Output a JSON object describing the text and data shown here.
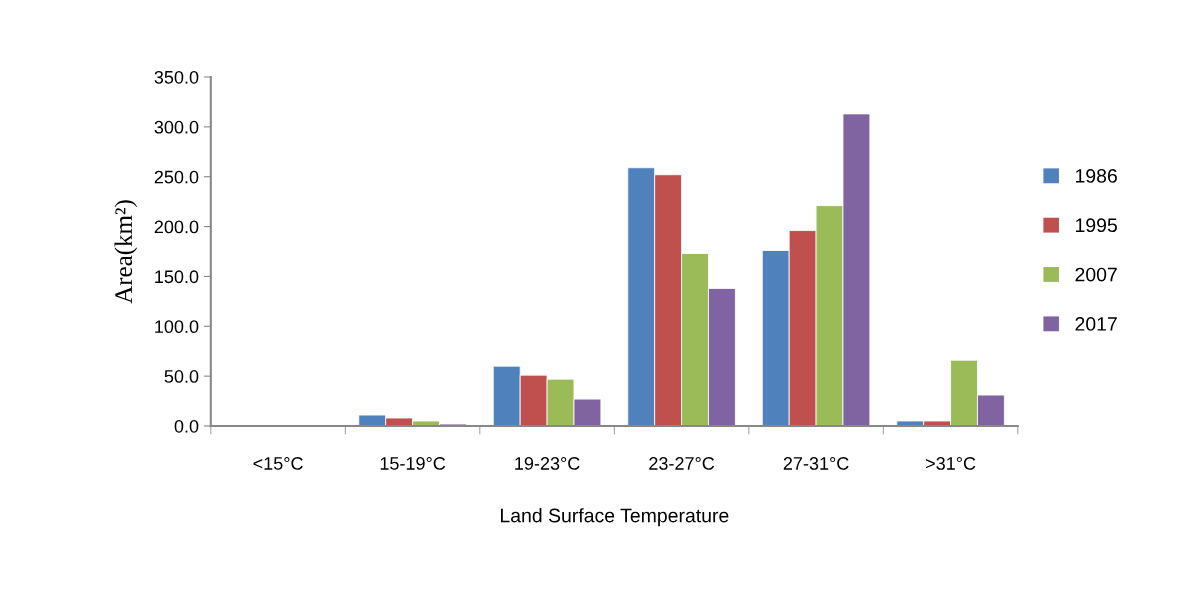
{
  "chart_data": {
    "type": "bar",
    "xlabel": "Land Surface Temperature",
    "ylabel": "Area(km²)",
    "categories": [
      "<15°C",
      "15-19°C",
      "19-23°C",
      "23-27°C",
      "27-31°C",
      ">31°C"
    ],
    "series": [
      {
        "name": "1986",
        "color": "#4f81bd",
        "values": [
          null,
          11,
          60,
          259,
          176,
          5
        ]
      },
      {
        "name": "1995",
        "color": "#c0504d",
        "values": [
          null,
          8,
          51,
          252,
          196,
          5
        ]
      },
      {
        "name": "2007",
        "color": "#9bbb59",
        "values": [
          null,
          5,
          47,
          173,
          221,
          66
        ]
      },
      {
        "name": "2017",
        "color": "#8064a2",
        "values": [
          null,
          2,
          27,
          138,
          313,
          31
        ]
      }
    ],
    "ylim": [
      0,
      350
    ],
    "yticks": [
      {
        "value": 0,
        "label": "0.0"
      },
      {
        "value": 50,
        "label": "50.0"
      },
      {
        "value": 100,
        "label": "100.0"
      },
      {
        "value": 150,
        "label": "150.0"
      },
      {
        "value": 200,
        "label": "200.0"
      },
      {
        "value": 250,
        "label": "250.0"
      },
      {
        "value": 300,
        "label": "300.0"
      },
      {
        "value": 350,
        "label": "350.0"
      }
    ],
    "grid": false,
    "legend": "right"
  }
}
